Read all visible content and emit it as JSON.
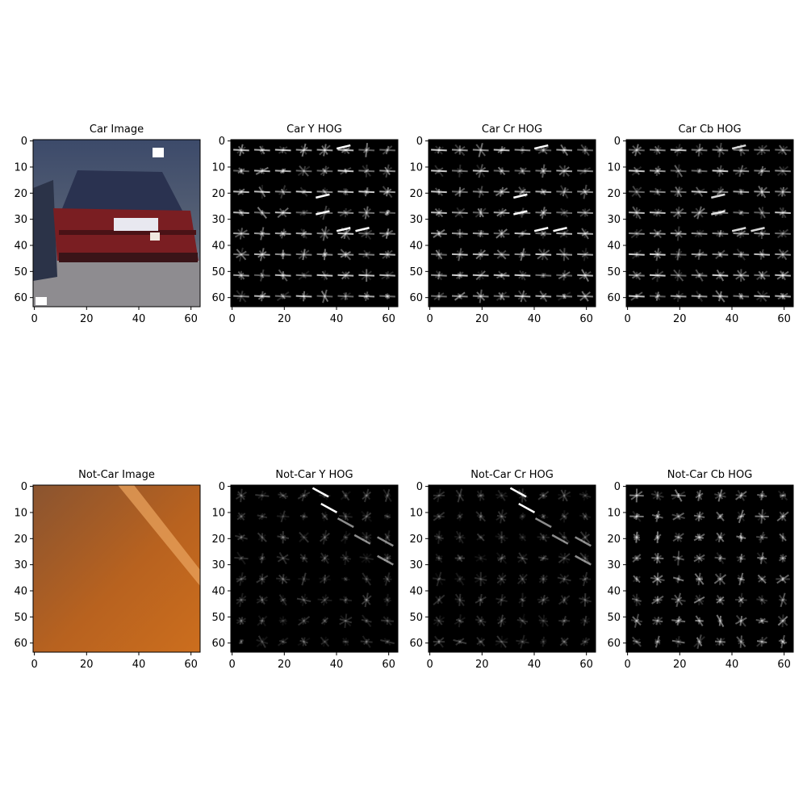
{
  "figure": {
    "panels": [
      {
        "title": "Car Image",
        "kind": "car-photo",
        "x_ticks": [
          "0",
          "20",
          "40",
          "60"
        ],
        "y_ticks": [
          "0",
          "10",
          "20",
          "30",
          "40",
          "50",
          "60"
        ]
      },
      {
        "title": "Car Y HOG",
        "kind": "car-hog",
        "x_ticks": [
          "0",
          "20",
          "40",
          "60"
        ],
        "y_ticks": [
          "0",
          "10",
          "20",
          "30",
          "40",
          "50",
          "60"
        ]
      },
      {
        "title": "Car Cr HOG",
        "kind": "car-hog",
        "x_ticks": [
          "0",
          "20",
          "40",
          "60"
        ],
        "y_ticks": [
          "0",
          "10",
          "20",
          "30",
          "40",
          "50",
          "60"
        ]
      },
      {
        "title": "Car Cb HOG",
        "kind": "car-hog-cb",
        "x_ticks": [
          "0",
          "20",
          "40",
          "60"
        ],
        "y_ticks": [
          "0",
          "10",
          "20",
          "30",
          "40",
          "50",
          "60"
        ]
      },
      {
        "title": "Not-Car Image",
        "kind": "road-photo",
        "x_ticks": [
          "0",
          "20",
          "40",
          "60"
        ],
        "y_ticks": [
          "0",
          "10",
          "20",
          "30",
          "40",
          "50",
          "60"
        ]
      },
      {
        "title": "Not-Car Y  HOG",
        "kind": "road-hog",
        "x_ticks": [
          "0",
          "20",
          "40",
          "60"
        ],
        "y_ticks": [
          "0",
          "10",
          "20",
          "30",
          "40",
          "50",
          "60"
        ]
      },
      {
        "title": "Not-Car Cr  HOG",
        "kind": "road-hog",
        "x_ticks": [
          "0",
          "20",
          "40",
          "60"
        ],
        "y_ticks": [
          "0",
          "10",
          "20",
          "30",
          "40",
          "50",
          "60"
        ]
      },
      {
        "title": "Not-Car Cb  HOG",
        "kind": "road-hog-cb",
        "x_ticks": [
          "0",
          "20",
          "40",
          "60"
        ],
        "y_ticks": [
          "0",
          "10",
          "20",
          "30",
          "40",
          "50",
          "60"
        ]
      }
    ],
    "axis_extent": [
      -0.5,
      63.5
    ],
    "tick_values_x": [
      0,
      20,
      40,
      60
    ],
    "tick_values_y": [
      0,
      10,
      20,
      30,
      40,
      50,
      60
    ],
    "colors": {
      "hog_background": "#000000",
      "hog_stroke": "#ffffff",
      "car_body": "#7a1e22",
      "road": "#b8621f",
      "road_stripe": "#e8a15c",
      "axes": "#000000"
    }
  }
}
